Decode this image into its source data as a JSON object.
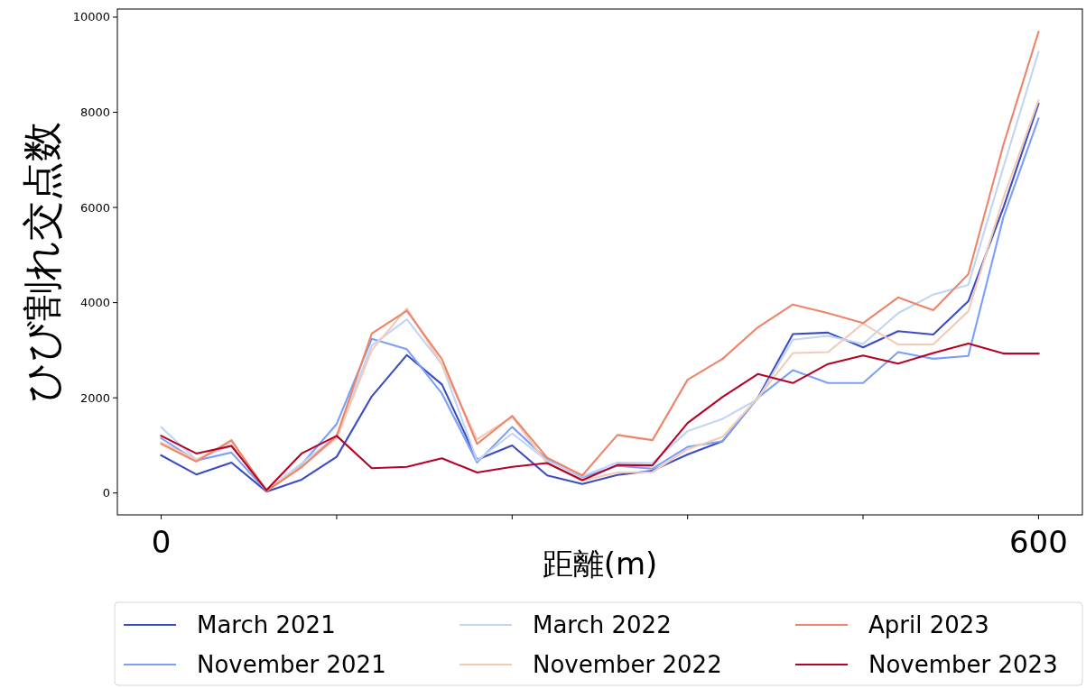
{
  "chart_data": {
    "type": "line",
    "xlabel": "距離(m)",
    "ylabel": "ひび割れ交点数",
    "x": [
      0,
      24,
      48,
      72,
      96,
      120,
      144,
      168,
      192,
      216,
      240,
      264,
      288,
      312,
      336,
      360,
      384,
      408,
      432,
      456,
      480,
      504,
      528,
      552,
      576,
      600
    ],
    "xlim": [
      -30,
      630
    ],
    "ylim": [
      -460,
      10170
    ],
    "xticks": [
      0,
      {
        "value": 120,
        "label": null
      },
      {
        "value": 240,
        "label": null
      },
      {
        "value": 360,
        "label": null
      },
      {
        "value": 480,
        "label": null
      },
      600
    ],
    "yticks": [
      0,
      2000,
      4000,
      6000,
      8000,
      10000
    ],
    "grid": false,
    "legend": "bottom",
    "line_style": "solid",
    "series": [
      {
        "name": "March 2021",
        "color": "#3b4cc0",
        "values": [
          790,
          390,
          640,
          30,
          280,
          760,
          2030,
          2900,
          2280,
          700,
          1000,
          370,
          190,
          380,
          470,
          810,
          1090,
          2000,
          3340,
          3370,
          3060,
          3400,
          3330,
          4030,
          6000,
          8180
        ]
      },
      {
        "name": "November 2021",
        "color": "#7b9ff9",
        "values": [
          1150,
          680,
          850,
          40,
          600,
          1450,
          3240,
          3020,
          2090,
          640,
          1390,
          700,
          330,
          570,
          510,
          970,
          1090,
          2000,
          2580,
          2310,
          2310,
          2960,
          2820,
          2880,
          5800,
          7870
        ]
      },
      {
        "name": "March 2022",
        "color": "#c0d4f5",
        "values": [
          1380,
          700,
          1000,
          60,
          620,
          1200,
          3100,
          3650,
          2700,
          680,
          1250,
          680,
          350,
          640,
          630,
          1300,
          1560,
          1970,
          3220,
          3300,
          3130,
          3780,
          4170,
          4370,
          6850,
          9270
        ]
      },
      {
        "name": "November 2022",
        "color": "#f2cbb7",
        "values": [
          1060,
          700,
          1080,
          70,
          560,
          1150,
          3000,
          3880,
          2700,
          1130,
          1600,
          620,
          260,
          430,
          440,
          920,
          1180,
          2000,
          2940,
          2960,
          3560,
          3120,
          3120,
          3820,
          6200,
          8250
        ]
      },
      {
        "name": "April 2023",
        "color": "#ee8469",
        "values": [
          1030,
          660,
          1110,
          40,
          540,
          1200,
          3350,
          3830,
          2810,
          1030,
          1620,
          740,
          370,
          1220,
          1110,
          2380,
          2820,
          3480,
          3960,
          3780,
          3570,
          4110,
          3840,
          4600,
          7320,
          9690
        ]
      },
      {
        "name": "November 2023",
        "color": "#b40426",
        "values": [
          1200,
          830,
          990,
          60,
          830,
          1200,
          520,
          550,
          730,
          430,
          550,
          630,
          270,
          590,
          580,
          1470,
          2020,
          2500,
          2310,
          2710,
          2890,
          2720,
          2940,
          3140,
          2930,
          2930
        ]
      }
    ]
  }
}
